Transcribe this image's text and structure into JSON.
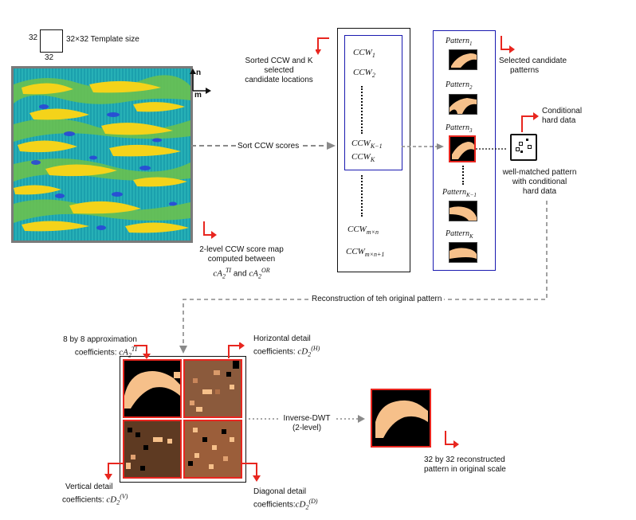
{
  "template": {
    "size_left": "32",
    "size_bottom": "32",
    "caption": "32×32 Template size"
  },
  "axes": {
    "n": "n",
    "m": "m"
  },
  "map": {
    "caption_line1": "2-level CCW score map",
    "caption_line2": "computed between",
    "cA_TI": "cA",
    "cA_TI_sub": "2",
    "cA_TI_sup": "TI",
    "and": "and",
    "cA_OR": "cA",
    "cA_OR_sub": "2",
    "cA_OR_sup": "OR",
    "colors": {
      "bg": "#1fa8b4",
      "yellow": "#f2d21b",
      "green": "#7cc04a",
      "blue": "#2a47d8",
      "frame": "#7a7a7a"
    }
  },
  "sort": {
    "arrow_label": "Sort CCW scores",
    "caption_line1": "Sorted CCW and K selected",
    "caption_line2": "candidate locations",
    "ccw_1": "CCW",
    "ccw_1_sub": "1",
    "ccw_2": "CCW",
    "ccw_2_sub": "2",
    "ccw_km1": "CCW",
    "ccw_km1_sub": "K−1",
    "ccw_k": "CCW",
    "ccw_k_sub": "K",
    "ccw_mn": "CCW",
    "ccw_mn_sub": "m×n",
    "ccw_mn1": "CCW",
    "ccw_mn1_sub": "m×n+1"
  },
  "patterns": {
    "caption_line1": "Selected candidate",
    "caption_line2": "patterns",
    "items": [
      {
        "name": "Pattern",
        "sub": "1"
      },
      {
        "name": "Pattern",
        "sub": "2"
      },
      {
        "name": "Pattern",
        "sub": "3"
      },
      {
        "name": "Pattern",
        "sub": "K−1"
      },
      {
        "name": "Pattern",
        "sub": "K"
      }
    ]
  },
  "hard_data": {
    "caption_line1": "Conditional",
    "caption_line2": "hard data",
    "well_line1": "well-matched pattern",
    "well_line2": "with conditional",
    "well_line3": "hard data"
  },
  "reconstruction": {
    "label": "Reconstruction of teh original pattern"
  },
  "dwt": {
    "approx_line1": "8 by 8 approximation",
    "approx_line2": "coefficients:",
    "approx_sym": "cA",
    "approx_sub": "2",
    "approx_sup": "TI",
    "horiz_line1": "Horizontal detail",
    "horiz_line2": "coefficients:",
    "horiz_sym": "cD",
    "horiz_sub": "2",
    "horiz_sup": "(H)",
    "vert_line1": "Vertical detail",
    "vert_line2": "coefficients:",
    "vert_sym": "cD",
    "vert_sub": "2",
    "vert_sup": "(V)",
    "diag_line1": "Diagonal detail",
    "diag_line2": "coefficients:",
    "diag_sym": "cD",
    "diag_sub": "2",
    "diag_sup": "(D)",
    "inverse_line1": "Inverse-DWT",
    "inverse_line2": "(2-level)"
  },
  "result": {
    "caption_line1": "32 by 32 reconstructed",
    "caption_line2": "pattern in original scale"
  },
  "colors": {
    "accent_red": "#e8261f",
    "blue_frame": "#1a1ab0",
    "sand": "#f6c08a",
    "brown_h": "#8b5a3c",
    "brown_v": "#5e3a22",
    "brown_d": "#9b5e3a"
  }
}
